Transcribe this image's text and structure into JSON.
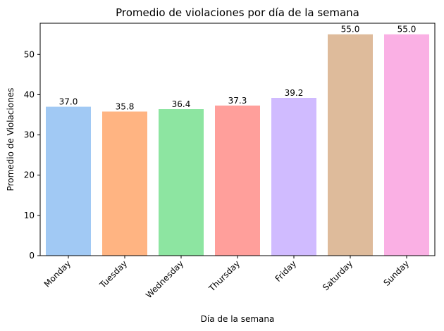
{
  "chart_data": {
    "type": "bar",
    "title": "Promedio de violaciones por día de la semana",
    "xlabel": "Día de la semana",
    "ylabel": "Promedio de Violaciones",
    "categories": [
      "Monday",
      "Tuesday",
      "Wednesday",
      "Thursday",
      "Friday",
      "Saturday",
      "Sunday"
    ],
    "values": [
      37.0,
      35.8,
      36.4,
      37.3,
      39.2,
      55.0,
      55.0
    ],
    "value_labels": [
      "37.0",
      "35.8",
      "36.4",
      "37.3",
      "39.2",
      "55.0",
      "55.0"
    ],
    "colors": [
      "#a1c9f4",
      "#ffb482",
      "#8de5a1",
      "#ff9f9b",
      "#d0bbff",
      "#debb9b",
      "#fab0e4"
    ],
    "ylim": [
      0,
      57.75
    ],
    "yticks": [
      0,
      10,
      20,
      30,
      40,
      50
    ],
    "grid": false,
    "legend": "none"
  }
}
